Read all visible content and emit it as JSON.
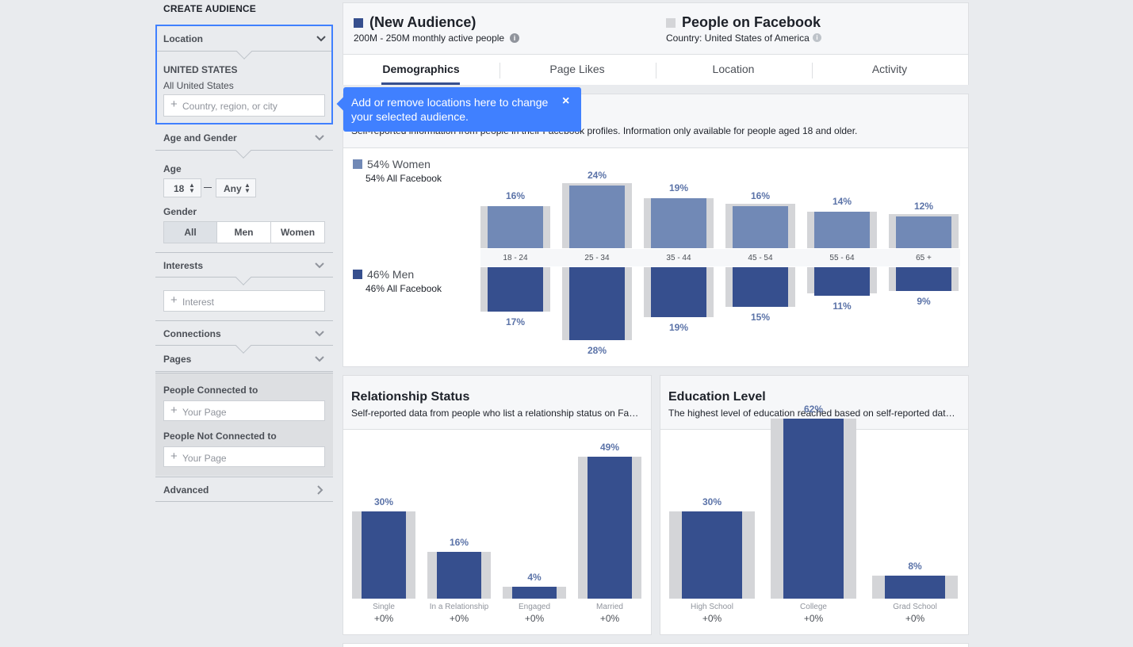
{
  "sidebar": {
    "title": "CREATE AUDIENCE",
    "location": {
      "label": "Location",
      "country": "UNITED STATES",
      "scope": "All United States",
      "placeholder": "Country, region, or city"
    },
    "age_gender": {
      "label": "Age and Gender",
      "age_label": "Age",
      "age_min": "18",
      "age_max": "Any",
      "gender_label": "Gender",
      "genders": [
        "All",
        "Men",
        "Women"
      ],
      "selected_gender": "All"
    },
    "interests": {
      "label": "Interests",
      "placeholder": "Interest"
    },
    "connections": {
      "label": "Connections"
    },
    "pages": {
      "label": "Pages",
      "connected_label": "People Connected to",
      "connected_placeholder": "Your Page",
      "not_connected_label": "People Not Connected to",
      "not_connected_placeholder": "Your Page"
    },
    "advanced": {
      "label": "Advanced"
    }
  },
  "header": {
    "audience_title": "(New Audience)",
    "audience_sub": "200M - 250M monthly active people",
    "compare_title": "People on Facebook",
    "compare_sub": "Country: United States of America"
  },
  "tabs": [
    "Demographics",
    "Page Likes",
    "Location",
    "Activity"
  ],
  "active_tab": "Demographics",
  "tooltip": {
    "text": "Add or remove locations here to change your selected audience.",
    "close": "×"
  },
  "demographics": {
    "subtitle": "Self-reported information from people in their Facebook profiles. Information only available for people aged 18 and older.",
    "women_label": "54% Women",
    "women_sub": "54% All Facebook",
    "men_label": "46% Men",
    "men_sub": "46% All Facebook"
  },
  "relationship": {
    "title": "Relationship Status",
    "subtitle": "Self-reported data from people who list a relationship status on Fa…"
  },
  "education": {
    "title": "Education Level",
    "subtitle": "The highest level of education reached based on self-reported dat…"
  },
  "colors": {
    "women": "#7189b6",
    "men": "#364f8e",
    "baseline": "#d4d5d8",
    "accent": "#4080ff"
  },
  "chart_data": [
    {
      "type": "bar",
      "categories": [
        "18 - 24",
        "25 - 34",
        "35 - 44",
        "45 - 54",
        "55 - 64",
        "65 +"
      ],
      "series": [
        {
          "name": "54% Women",
          "values": [
            16,
            24,
            19,
            16,
            14,
            12
          ],
          "labels": [
            "16%",
            "24%",
            "19%",
            "16%",
            "14%",
            "12%"
          ]
        },
        {
          "name": "46% Men",
          "values": [
            17,
            28,
            19,
            15,
            11,
            9
          ],
          "labels": [
            "17%",
            "28%",
            "19%",
            "15%",
            "11%",
            "9%"
          ]
        }
      ],
      "baseline": {
        "women": [
          16,
          25,
          19,
          17,
          14,
          13
        ],
        "men": [
          17,
          28,
          19,
          15,
          10,
          9
        ]
      }
    },
    {
      "type": "bar",
      "title": "Relationship Status",
      "categories": [
        "Single",
        "In a Relationship",
        "Engaged",
        "Married"
      ],
      "values": [
        30,
        16,
        4,
        49
      ],
      "labels": [
        "30%",
        "16%",
        "4%",
        "49%"
      ],
      "deltas": [
        "+0%",
        "+0%",
        "+0%",
        "+0%"
      ]
    },
    {
      "type": "bar",
      "title": "Education Level",
      "categories": [
        "High School",
        "College",
        "Grad School"
      ],
      "values": [
        30,
        62,
        8
      ],
      "labels": [
        "30%",
        "62%",
        "8%"
      ],
      "deltas": [
        "+0%",
        "+0%",
        "+0%"
      ]
    }
  ]
}
